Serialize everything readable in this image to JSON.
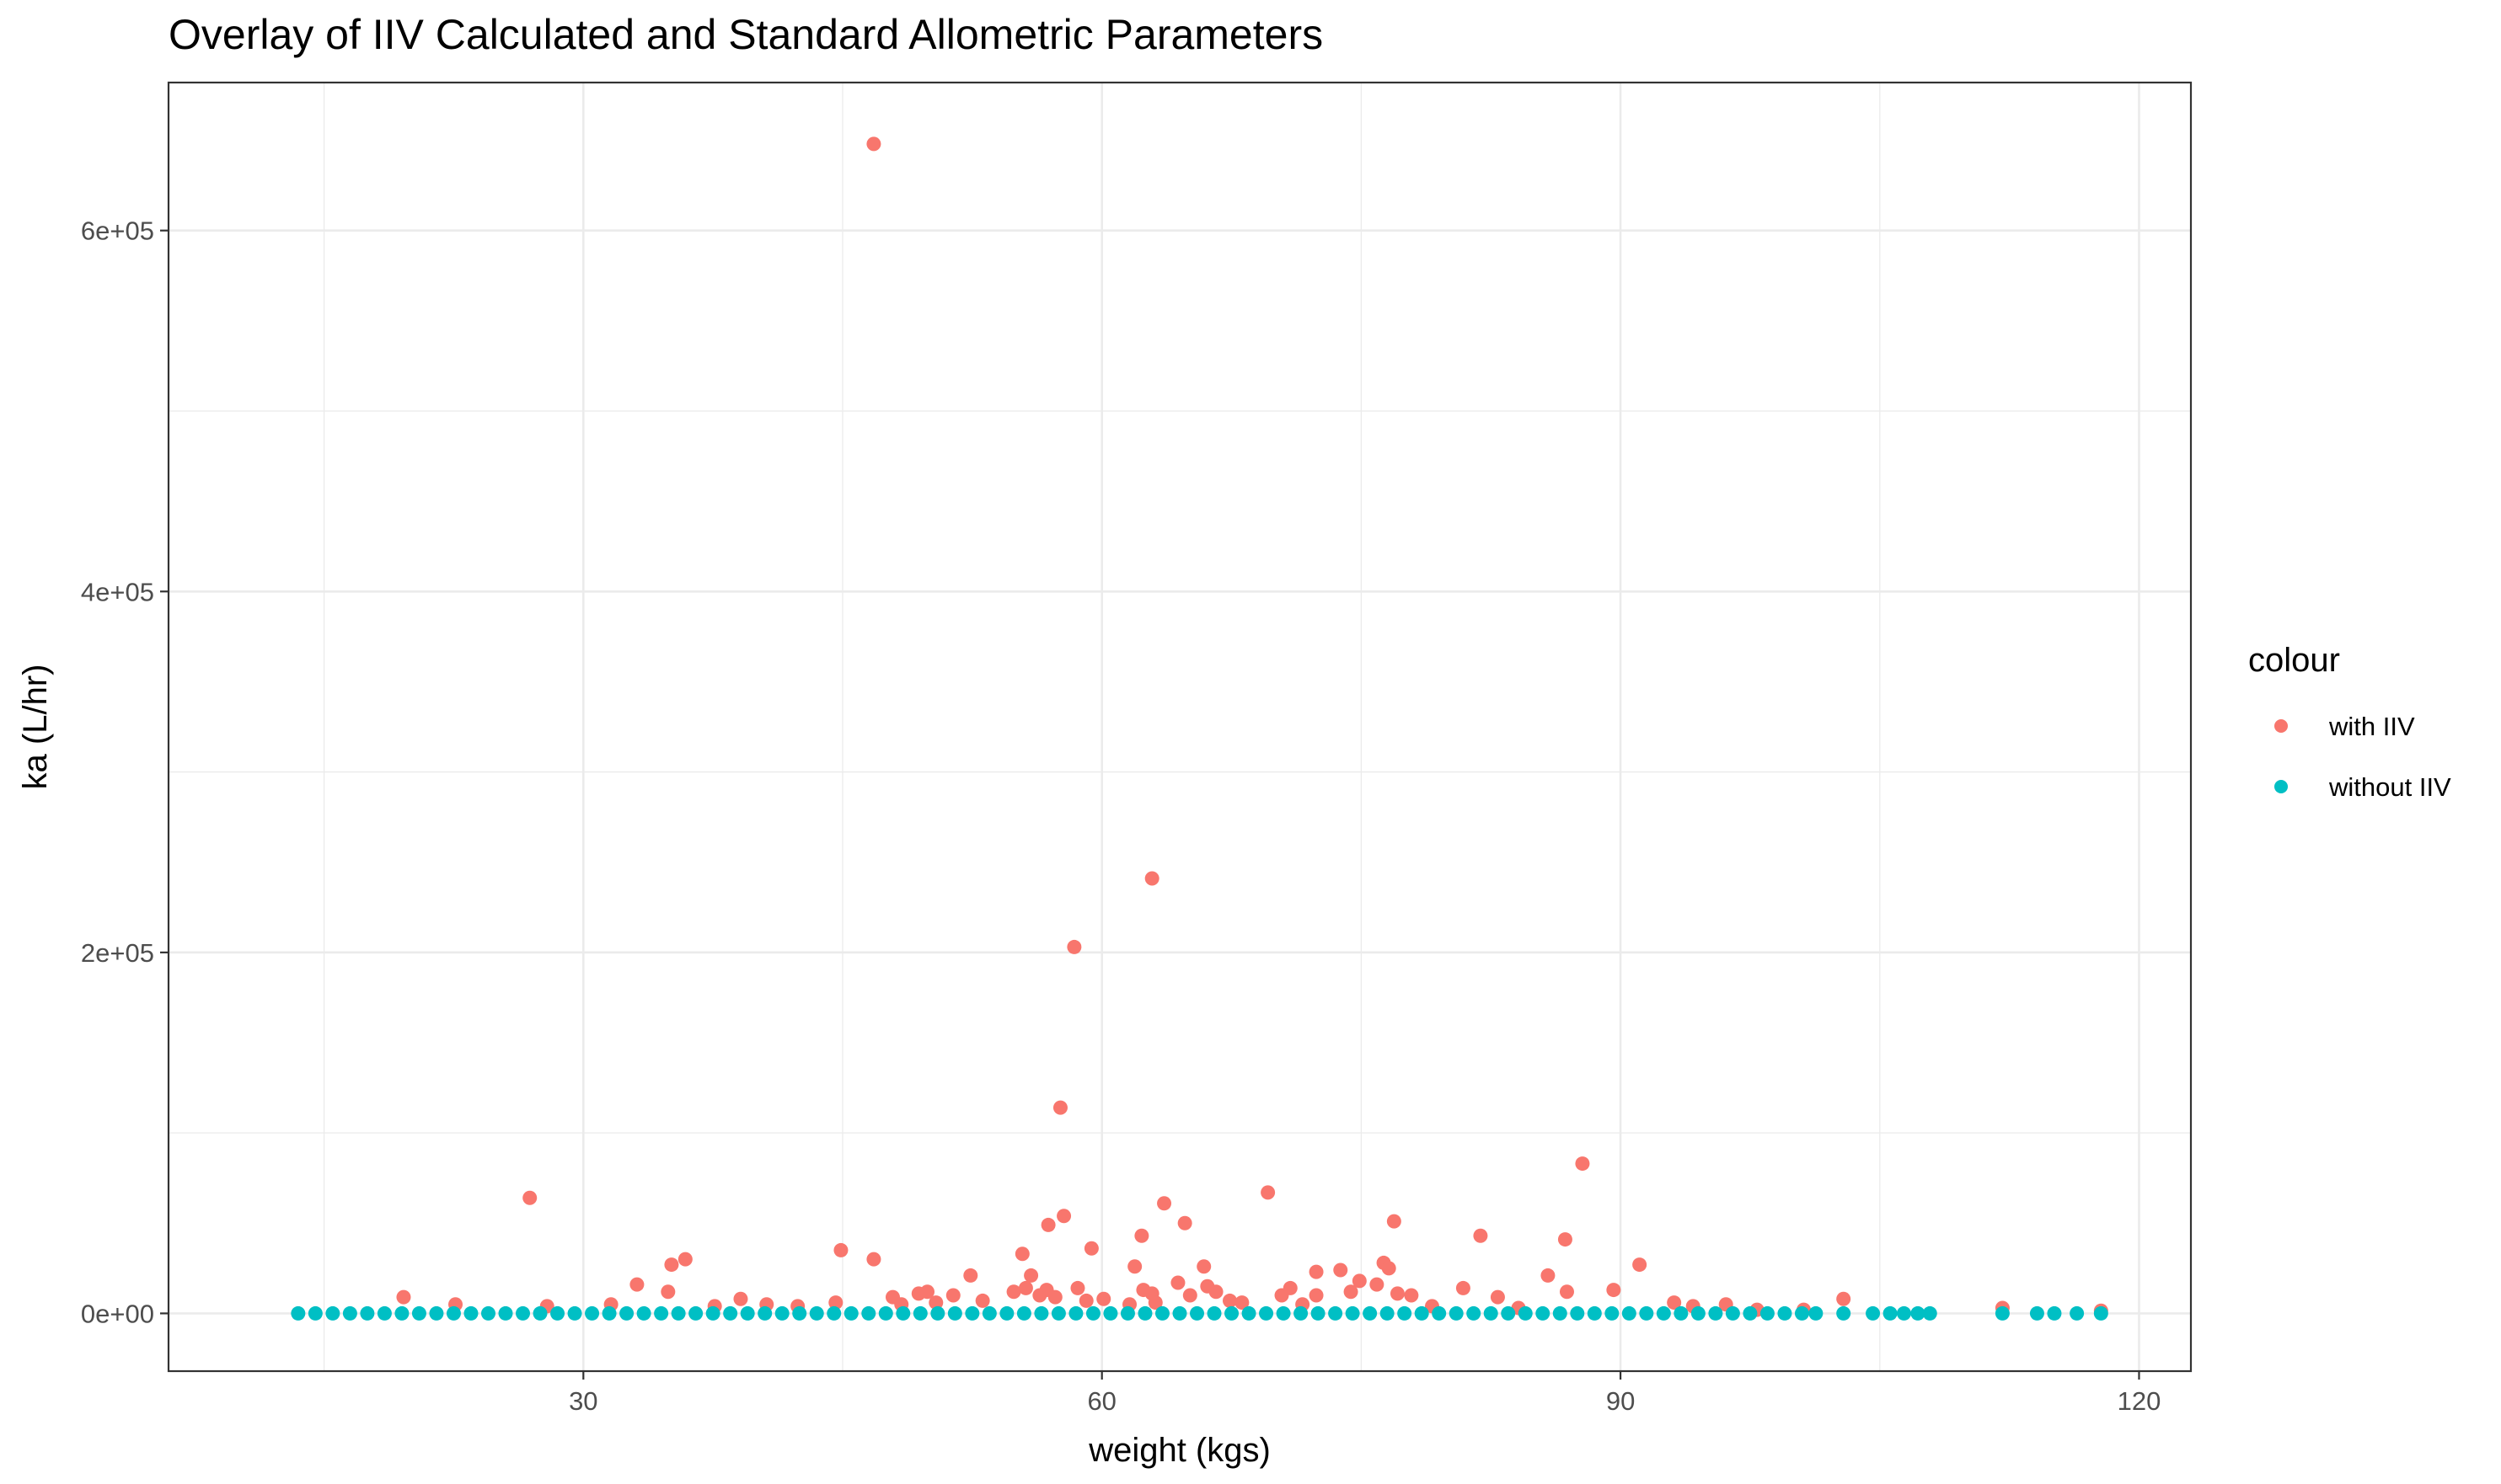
{
  "chart_data": {
    "type": "scatter",
    "title": "Overlay of IIV Calculated and Standard Allometric Parameters",
    "xlabel": "weight (kgs)",
    "ylabel": "ka (L/hr)",
    "xlim": [
      6,
      123
    ],
    "ylim": [
      -32000,
      682000
    ],
    "x_ticks": [
      30,
      60,
      90,
      120
    ],
    "x_tick_labels": [
      "30",
      "60",
      "90",
      "120"
    ],
    "x_minor_ticks": [
      15,
      45,
      75,
      105
    ],
    "y_ticks": [
      0,
      200000,
      400000,
      600000
    ],
    "y_tick_labels": [
      "0e+00",
      "2e+05",
      "4e+05",
      "6e+05"
    ],
    "y_minor_ticks": [
      100000,
      300000,
      500000
    ],
    "grid": true,
    "legend": {
      "title": "colour",
      "position": "right",
      "entries": [
        {
          "label": "with IIV",
          "color": "#F8766D"
        },
        {
          "label": "without IIV",
          "color": "#00BFC4"
        }
      ]
    },
    "series": [
      {
        "name": "with IIV",
        "color": "#F8766D",
        "x": [
          46.8,
          62.9,
          58.4,
          57.6,
          87.8,
          69.6,
          26.9,
          63.6,
          57.8,
          76.9,
          56.9,
          64.8,
          62.3,
          81.9,
          86.8,
          59.4,
          55.4,
          44.9,
          46.8,
          35.9,
          35.1,
          91.1,
          61.9,
          65.9,
          73.8,
          72.4,
          74.9,
          75.9,
          76.3,
          76.6,
          52.4,
          55.9,
          33.1,
          34.9,
          47.9,
          49.4,
          49.9,
          51.4,
          53.1,
          54.9,
          55.6,
          56.4,
          56.8,
          57.3,
          58.6,
          60.1,
          62.4,
          62.9,
          64.4,
          65.1,
          66.1,
          66.6,
          67.4,
          70.4,
          70.9,
          72.4,
          74.4,
          77.1,
          77.9,
          80.9,
          82.9,
          85.8,
          86.9,
          89.6,
          93.1,
          94.2,
          96.1,
          102.9,
          112.1,
          117.8,
          19.6,
          22.6,
          27.9,
          31.6,
          37.6,
          39.1,
          40.6,
          42.4,
          44.6,
          48.4,
          50.4,
          59.1,
          61.6,
          63.1,
          68.1,
          71.6,
          79.1,
          84.1,
          97.9,
          100.6
        ],
        "y": [
          648000,
          241000,
          203000,
          114000,
          83000,
          67000,
          64000,
          61000,
          54000,
          51000,
          49000,
          50000,
          43000,
          43000,
          41000,
          36000,
          33000,
          35000,
          30000,
          30000,
          27000,
          27000,
          26000,
          26000,
          24000,
          23000,
          18000,
          16000,
          28000,
          25000,
          21000,
          21000,
          16000,
          12000,
          9000,
          11000,
          12000,
          10000,
          7000,
          12000,
          14000,
          10000,
          13000,
          9000,
          14000,
          8000,
          13000,
          11000,
          17000,
          10000,
          15000,
          12000,
          7000,
          10000,
          14000,
          10000,
          12000,
          11000,
          10000,
          14000,
          9000,
          21000,
          12000,
          13000,
          6000,
          4000,
          5000,
          8000,
          3000,
          1500,
          9000,
          5000,
          4000,
          5000,
          4000,
          8000,
          5000,
          4000,
          6000,
          5000,
          6000,
          7000,
          5000,
          6000,
          6000,
          5000,
          4000,
          3000,
          2000,
          2000
        ]
      },
      {
        "name": "without IIV",
        "color": "#00BFC4",
        "x": [
          13.5,
          14.5,
          15.5,
          16.5,
          17.5,
          18.5,
          19.5,
          20.5,
          21.5,
          22.5,
          23.5,
          24.5,
          25.5,
          26.5,
          27.5,
          28.5,
          29.5,
          30.5,
          31.5,
          32.5,
          33.5,
          34.5,
          35.5,
          36.5,
          37.5,
          38.5,
          39.5,
          40.5,
          41.5,
          42.5,
          43.5,
          44.5,
          45.5,
          46.5,
          47.5,
          48.5,
          49.5,
          50.5,
          51.5,
          52.5,
          53.5,
          54.5,
          55.5,
          56.5,
          57.5,
          58.5,
          59.5,
          60.5,
          61.5,
          62.5,
          63.5,
          64.5,
          65.5,
          66.5,
          67.5,
          68.5,
          69.5,
          70.5,
          71.5,
          72.5,
          73.5,
          74.5,
          75.5,
          76.5,
          77.5,
          78.5,
          79.5,
          80.5,
          81.5,
          82.5,
          83.5,
          84.5,
          85.5,
          86.5,
          87.5,
          88.5,
          89.5,
          90.5,
          91.5,
          92.5,
          93.5,
          94.5,
          95.5,
          96.5,
          97.5,
          98.5,
          99.5,
          100.5,
          101.3,
          102.9,
          104.6,
          105.6,
          106.4,
          107.2,
          107.9,
          112.1,
          114.1,
          115.1,
          116.4,
          117.8
        ],
        "y": [
          0,
          0,
          0,
          0,
          0,
          0,
          0,
          0,
          0,
          0,
          0,
          0,
          0,
          0,
          0,
          0,
          0,
          0,
          0,
          0,
          0,
          0,
          0,
          0,
          0,
          0,
          0,
          0,
          0,
          0,
          0,
          0,
          0,
          0,
          0,
          0,
          0,
          0,
          0,
          0,
          0,
          0,
          0,
          0,
          0,
          0,
          0,
          0,
          0,
          0,
          0,
          0,
          0,
          0,
          0,
          0,
          0,
          0,
          0,
          0,
          0,
          0,
          0,
          0,
          0,
          0,
          0,
          0,
          0,
          0,
          0,
          0,
          0,
          0,
          0,
          0,
          0,
          0,
          0,
          0,
          0,
          0,
          0,
          0,
          0,
          0,
          0,
          0,
          0,
          0,
          0,
          0,
          0,
          0,
          0,
          0,
          0,
          0,
          0,
          0
        ]
      }
    ]
  }
}
